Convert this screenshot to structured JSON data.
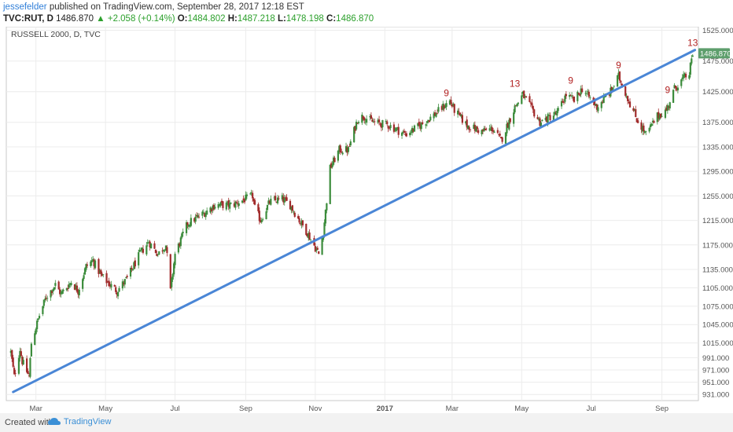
{
  "header": {
    "author": "jessefelder",
    "published_text": "published on TradingView.com, September 28, 2017 12:18 EST",
    "symbol": "TVC:RUT, D",
    "last": "1486.870",
    "change_arrow": "▲",
    "change": "+2.058 (+0.14%)",
    "open_label": "O:",
    "open": "1484.802",
    "high_label": "H:",
    "high": "1487.218",
    "low_label": "L:",
    "low": "1478.198",
    "close_label": "C:",
    "close": "1486.870"
  },
  "footer": {
    "created_with": "Created with",
    "brand": "TradingView"
  },
  "chart_data": {
    "type": "candlestick",
    "title": "RUSSELL 2000, D, TVC",
    "colors": {
      "up": "#3c8c3c",
      "down": "#a12b2b",
      "trendline": "#4a86d6",
      "annotation": "#b22222",
      "price_tag": "#5d9e6c"
    },
    "ylim": [
      921,
      1531
    ],
    "y_ticks": [
      931,
      951,
      971,
      991,
      1015,
      1045,
      1075,
      1105,
      1135,
      1175,
      1215,
      1255,
      1295,
      1335,
      1375,
      1425,
      1475,
      1525
    ],
    "y_tick_labels": [
      "931.000",
      "951.000",
      "971.000",
      "991.000",
      "1015.000",
      "1045.000",
      "1075.000",
      "1105.000",
      "1135.000",
      "1175.000",
      "1215.000",
      "1255.000",
      "1295.000",
      "1335.000",
      "1375.000",
      "1425.000",
      "1475.000",
      "1525.000"
    ],
    "x_range": [
      "2016-02-04",
      "2017-10-03"
    ],
    "x_ticks": [
      {
        "date": "2016-03-01",
        "label": "Mar"
      },
      {
        "date": "2016-05-01",
        "label": "May"
      },
      {
        "date": "2016-07-01",
        "label": "Jul"
      },
      {
        "date": "2016-09-01",
        "label": "Sep"
      },
      {
        "date": "2016-11-01",
        "label": "Nov"
      },
      {
        "date": "2017-01-01",
        "label": "2017"
      },
      {
        "date": "2017-03-01",
        "label": "Mar"
      },
      {
        "date": "2017-05-01",
        "label": "May"
      },
      {
        "date": "2017-07-01",
        "label": "Jul"
      },
      {
        "date": "2017-09-01",
        "label": "Sep"
      }
    ],
    "price_path": [
      [
        "2016-02-08",
        1000
      ],
      [
        "2016-02-11",
        960
      ],
      [
        "2016-02-16",
        1005
      ],
      [
        "2016-02-18",
        985
      ],
      [
        "2016-02-24",
        960
      ],
      [
        "2016-02-26",
        1015
      ],
      [
        "2016-03-04",
        1060
      ],
      [
        "2016-03-10",
        1090
      ],
      [
        "2016-03-18",
        1110
      ],
      [
        "2016-03-23",
        1095
      ],
      [
        "2016-04-01",
        1115
      ],
      [
        "2016-04-07",
        1100
      ],
      [
        "2016-04-14",
        1140
      ],
      [
        "2016-04-20",
        1150
      ],
      [
        "2016-04-27",
        1125
      ],
      [
        "2016-05-05",
        1110
      ],
      [
        "2016-05-11",
        1100
      ],
      [
        "2016-05-20",
        1120
      ],
      [
        "2016-05-31",
        1160
      ],
      [
        "2016-06-08",
        1180
      ],
      [
        "2016-06-16",
        1160
      ],
      [
        "2016-06-23",
        1175
      ],
      [
        "2016-06-27",
        1100
      ],
      [
        "2016-07-01",
        1160
      ],
      [
        "2016-07-12",
        1210
      ],
      [
        "2016-07-25",
        1225
      ],
      [
        "2016-08-05",
        1240
      ],
      [
        "2016-08-20",
        1240
      ],
      [
        "2016-09-07",
        1255
      ],
      [
        "2016-09-09",
        1235
      ],
      [
        "2016-09-14",
        1215
      ],
      [
        "2016-09-22",
        1245
      ],
      [
        "2016-10-03",
        1250
      ],
      [
        "2016-10-10",
        1240
      ],
      [
        "2016-10-18",
        1215
      ],
      [
        "2016-10-25",
        1195
      ],
      [
        "2016-11-04",
        1160
      ],
      [
        "2016-11-08",
        1195
      ],
      [
        "2016-11-14",
        1300
      ],
      [
        "2016-11-22",
        1330
      ],
      [
        "2016-11-30",
        1330
      ],
      [
        "2016-12-08",
        1380
      ],
      [
        "2016-12-13",
        1385
      ],
      [
        "2016-12-22",
        1375
      ],
      [
        "2017-01-05",
        1370
      ],
      [
        "2017-01-19",
        1355
      ],
      [
        "2017-02-01",
        1370
      ],
      [
        "2017-02-15",
        1390
      ],
      [
        "2017-02-27",
        1410
      ],
      [
        "2017-03-03",
        1395
      ],
      [
        "2017-03-14",
        1370
      ],
      [
        "2017-03-27",
        1360
      ],
      [
        "2017-04-05",
        1365
      ],
      [
        "2017-04-13",
        1345
      ],
      [
        "2017-04-25",
        1400
      ],
      [
        "2017-05-02",
        1420
      ],
      [
        "2017-05-17",
        1375
      ],
      [
        "2017-06-01",
        1390
      ],
      [
        "2017-06-09",
        1420
      ],
      [
        "2017-06-16",
        1410
      ],
      [
        "2017-06-23",
        1430
      ],
      [
        "2017-07-06",
        1400
      ],
      [
        "2017-07-18",
        1425
      ],
      [
        "2017-07-25",
        1450
      ],
      [
        "2017-08-03",
        1410
      ],
      [
        "2017-08-10",
        1380
      ],
      [
        "2017-08-18",
        1355
      ],
      [
        "2017-08-28",
        1385
      ],
      [
        "2017-09-05",
        1395
      ],
      [
        "2017-09-12",
        1430
      ],
      [
        "2017-09-19",
        1445
      ],
      [
        "2017-09-25",
        1455
      ],
      [
        "2017-09-28",
        1487
      ]
    ],
    "trendline": [
      {
        "date": "2016-02-10",
        "price": 935
      },
      {
        "date": "2017-09-30",
        "price": 1493
      }
    ],
    "annotations": [
      {
        "date": "2017-02-24",
        "price": 1405,
        "label": "9"
      },
      {
        "date": "2017-04-25",
        "price": 1420,
        "label": "13"
      },
      {
        "date": "2017-06-13",
        "price": 1425,
        "label": "9"
      },
      {
        "date": "2017-07-25",
        "price": 1450,
        "label": "9"
      },
      {
        "date": "2017-09-06",
        "price": 1410,
        "label": "9"
      },
      {
        "date": "2017-09-28",
        "price": 1487,
        "label": "13"
      }
    ],
    "last_price_label": "1486.870",
    "grid": true
  }
}
